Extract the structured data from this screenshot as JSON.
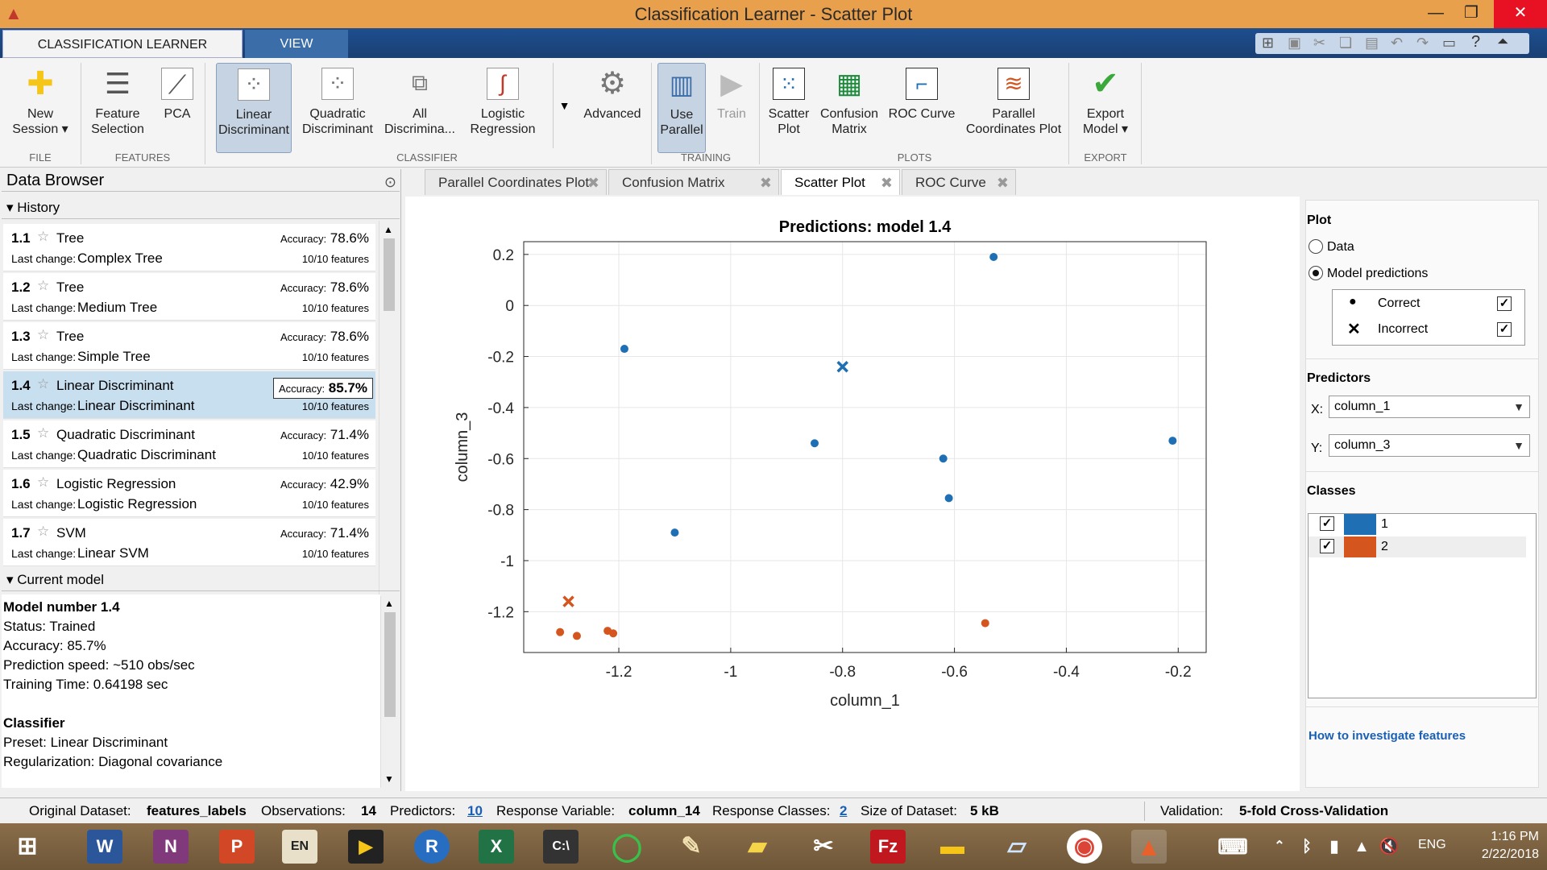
{
  "window": {
    "title": "Classification Learner - Scatter Plot"
  },
  "ribbon_tabs": [
    "CLASSIFICATION LEARNER",
    "VIEW"
  ],
  "ribbon": {
    "new_session": "New Session",
    "feature_selection": "Feature Selection",
    "pca": "PCA",
    "linear": "Linear Discriminant",
    "quadratic": "Quadratic Discriminant",
    "all": "All Discrimina...",
    "logistic": "Logistic Regression",
    "advanced": "Advanced",
    "use_parallel": "Use Parallel",
    "train": "Train",
    "scatter": "Scatter Plot",
    "confusion": "Confusion Matrix",
    "roc": "ROC Curve",
    "parallel": "Parallel Coordinates Plot",
    "export": "Export Model",
    "groups": {
      "file": "FILE",
      "features": "FEATURES",
      "classifier": "CLASSIFIER",
      "training": "TRAINING",
      "plots": "PLOTS",
      "export": "EXPORT"
    }
  },
  "browser": {
    "title": "Data Browser",
    "history_label": "History",
    "current_label": "Current model",
    "last_change_label": "Last change:",
    "accuracy_label": "Accuracy:",
    "history": [
      {
        "num": "1.1",
        "name": "Tree",
        "acc": "78.6%",
        "change": "Complex Tree",
        "features": "10/10 features"
      },
      {
        "num": "1.2",
        "name": "Tree",
        "acc": "78.6%",
        "change": "Medium Tree",
        "features": "10/10 features"
      },
      {
        "num": "1.3",
        "name": "Tree",
        "acc": "78.6%",
        "change": "Simple Tree",
        "features": "10/10 features"
      },
      {
        "num": "1.4",
        "name": "Linear Discriminant",
        "acc": "85.7%",
        "change": "Linear Discriminant",
        "features": "10/10 features"
      },
      {
        "num": "1.5",
        "name": "Quadratic Discriminant",
        "acc": "71.4%",
        "change": "Quadratic Discriminant",
        "features": "10/10 features"
      },
      {
        "num": "1.6",
        "name": "Logistic Regression",
        "acc": "42.9%",
        "change": "Logistic Regression",
        "features": "10/10 features"
      },
      {
        "num": "1.7",
        "name": "SVM",
        "acc": "71.4%",
        "change": "Linear SVM",
        "features": "10/10 features"
      }
    ],
    "current": {
      "l1": "Model number 1.4",
      "l2": "Status: Trained",
      "l3": "Accuracy: 85.7%",
      "l4": "Prediction speed: ~510 obs/sec",
      "l5": "Training Time: 0.64198 sec",
      "l6": "Classifier",
      "l7": "Preset: Linear Discriminant",
      "l8": "Regularization: Diagonal covariance"
    }
  },
  "plot_tabs": [
    "Parallel Coordinates Plot",
    "Confusion Matrix",
    "Scatter Plot",
    "ROC Curve"
  ],
  "right_panel": {
    "plot": "Plot",
    "data": "Data",
    "model_predictions": "Model predictions",
    "correct": "Correct",
    "incorrect": "Incorrect",
    "predictors": "Predictors",
    "x_label": "X:",
    "y_label": "Y:",
    "x_value": "column_1",
    "y_value": "column_3",
    "classes": "Classes",
    "class1": "1",
    "class2": "2",
    "help": "How to investigate features"
  },
  "status": {
    "orig": "Original Dataset:",
    "orig_v": "features_labels",
    "obs": "Observations:",
    "obs_v": "14",
    "pred": "Predictors:",
    "pred_v": "10",
    "resp": "Response Variable:",
    "resp_v": "column_14",
    "rc": "Response Classes:",
    "rc_v": "2",
    "size": "Size of Dataset:",
    "size_v": "5 kB",
    "val": "Validation:",
    "val_v": "5-fold Cross-Validation"
  },
  "taskbar": {
    "time": "1:16 PM",
    "date": "2/22/2018",
    "lang": "ENG"
  },
  "chart_data": {
    "type": "scatter",
    "title": "Predictions: model 1.4",
    "xlabel": "column_1",
    "ylabel": "column_3",
    "xlim": [
      -1.37,
      -0.15
    ],
    "ylim": [
      -1.36,
      0.25
    ],
    "xticks": [
      -1.2,
      -1,
      -0.8,
      -0.6,
      -0.4,
      -0.2
    ],
    "yticks": [
      0.2,
      0,
      -0.2,
      -0.4,
      -0.6,
      -0.8,
      -1,
      -1.2
    ],
    "colors": {
      "1": "#1f6fb5",
      "2": "#d4561e"
    },
    "series": [
      {
        "name": "1",
        "points": [
          {
            "x": -0.53,
            "y": 0.19,
            "m": "correct"
          },
          {
            "x": -1.19,
            "y": -0.17,
            "m": "correct"
          },
          {
            "x": -0.8,
            "y": -0.24,
            "m": "incorrect"
          },
          {
            "x": -0.85,
            "y": -0.54,
            "m": "correct"
          },
          {
            "x": -0.62,
            "y": -0.6,
            "m": "correct"
          },
          {
            "x": -0.21,
            "y": -0.53,
            "m": "correct"
          },
          {
            "x": -0.61,
            "y": -0.755,
            "m": "correct"
          },
          {
            "x": -1.1,
            "y": -0.89,
            "m": "correct"
          }
        ]
      },
      {
        "name": "2",
        "points": [
          {
            "x": -1.29,
            "y": -1.16,
            "m": "incorrect"
          },
          {
            "x": -1.305,
            "y": -1.28,
            "m": "correct"
          },
          {
            "x": -1.275,
            "y": -1.295,
            "m": "correct"
          },
          {
            "x": -1.22,
            "y": -1.275,
            "m": "correct"
          },
          {
            "x": -1.21,
            "y": -1.285,
            "m": "correct"
          },
          {
            "x": -0.545,
            "y": -1.245,
            "m": "correct"
          }
        ]
      }
    ]
  }
}
